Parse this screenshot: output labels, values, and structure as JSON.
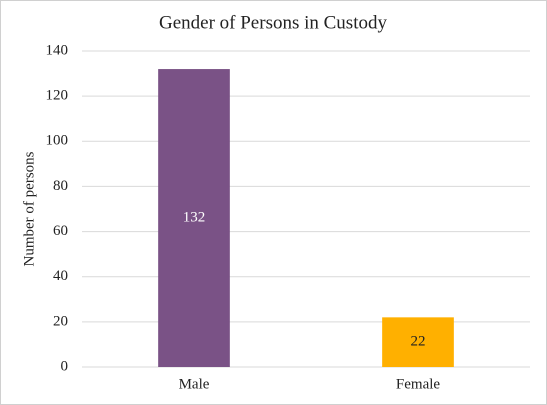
{
  "chart_data": {
    "type": "bar",
    "title": "Gender of Persons in Custody",
    "y_label": "Number of persons",
    "categories": [
      "Male",
      "Female"
    ],
    "values": [
      132,
      22
    ],
    "colors": [
      "#7a5286",
      "#ffb000"
    ],
    "ylim": [
      0,
      140
    ],
    "yticks": [
      0,
      20,
      40,
      60,
      80,
      100,
      120,
      140
    ],
    "grid": true,
    "data_labels": true
  }
}
